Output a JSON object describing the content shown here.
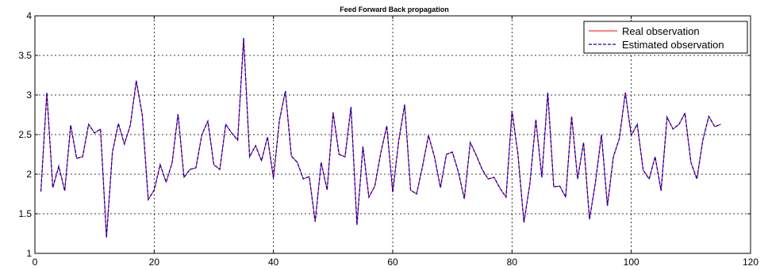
{
  "chart_data": {
    "type": "line",
    "title": "Feed Forward Back propagation",
    "xlabel": "",
    "ylabel": "",
    "xlim": [
      0,
      120
    ],
    "ylim": [
      1,
      4
    ],
    "xticks": [
      0,
      20,
      40,
      60,
      80,
      100,
      120
    ],
    "yticks": [
      1,
      1.5,
      2,
      2.5,
      3,
      3.5,
      4
    ],
    "xtick_labels": [
      "0",
      "20",
      "40",
      "60",
      "80",
      "100",
      "120"
    ],
    "ytick_labels": [
      "1",
      "1.5",
      "2",
      "2.5",
      "3",
      "3.5",
      "4"
    ],
    "grid": true,
    "legend_position": "top-right",
    "series": [
      {
        "name": "Real observation",
        "color": "#ff0000",
        "style": "solid",
        "x": [
          1,
          2,
          3,
          4,
          5,
          6,
          7,
          8,
          9,
          10,
          11,
          12,
          13,
          14,
          15,
          16,
          17,
          18,
          19,
          20,
          21,
          22,
          23,
          24,
          25,
          26,
          27,
          28,
          29,
          30,
          31,
          32,
          33,
          34,
          35,
          36,
          37,
          38,
          39,
          40,
          41,
          42,
          43,
          44,
          45,
          46,
          47,
          48,
          49,
          50,
          51,
          52,
          53,
          54,
          55,
          56,
          57,
          58,
          59,
          60,
          61,
          62,
          63,
          64,
          65,
          66,
          67,
          68,
          69,
          70,
          71,
          72,
          73,
          74,
          75,
          76,
          77,
          78,
          79,
          80,
          81,
          82,
          83,
          84,
          85,
          86,
          87,
          88,
          89,
          90,
          91,
          92,
          93,
          94,
          95,
          96,
          97,
          98,
          99,
          100,
          101,
          102,
          103,
          104,
          105,
          106,
          107,
          108,
          109,
          110,
          111,
          112,
          113,
          114,
          115
        ],
        "values": [
          1.78,
          3.03,
          1.83,
          2.1,
          1.79,
          2.62,
          2.2,
          2.22,
          2.63,
          2.52,
          2.57,
          1.2,
          2.28,
          2.64,
          2.38,
          2.62,
          3.18,
          2.75,
          1.68,
          1.8,
          2.12,
          1.9,
          2.14,
          2.76,
          1.96,
          2.06,
          2.08,
          2.5,
          2.67,
          2.12,
          2.06,
          2.63,
          2.52,
          2.43,
          3.72,
          2.22,
          2.36,
          2.17,
          2.47,
          1.95,
          2.68,
          3.05,
          2.23,
          2.15,
          1.94,
          1.97,
          1.4,
          2.15,
          1.8,
          2.78,
          2.25,
          2.22,
          2.85,
          1.36,
          2.35,
          1.71,
          1.85,
          2.27,
          2.61,
          1.77,
          2.42,
          2.88,
          1.8,
          1.75,
          2.1,
          2.49,
          2.22,
          1.83,
          2.25,
          2.28,
          2.03,
          1.69,
          2.4,
          2.24,
          2.06,
          1.94,
          1.96,
          1.82,
          1.71,
          2.8,
          2.25,
          1.39,
          1.88,
          2.69,
          1.96,
          3.03,
          1.84,
          1.85,
          1.71,
          2.73,
          1.94,
          2.4,
          1.43,
          1.9,
          2.5,
          1.6,
          2.22,
          2.45,
          3.03,
          2.49,
          2.63,
          2.05,
          1.94,
          2.22,
          1.79,
          2.72,
          2.57,
          2.63,
          2.77,
          2.15,
          1.94,
          2.43,
          2.73,
          2.6,
          2.63
        ]
      },
      {
        "name": "Estimated observation",
        "color": "#0000cc",
        "style": "dashed",
        "x": [
          1,
          2,
          3,
          4,
          5,
          6,
          7,
          8,
          9,
          10,
          11,
          12,
          13,
          14,
          15,
          16,
          17,
          18,
          19,
          20,
          21,
          22,
          23,
          24,
          25,
          26,
          27,
          28,
          29,
          30,
          31,
          32,
          33,
          34,
          35,
          36,
          37,
          38,
          39,
          40,
          41,
          42,
          43,
          44,
          45,
          46,
          47,
          48,
          49,
          50,
          51,
          52,
          53,
          54,
          55,
          56,
          57,
          58,
          59,
          60,
          61,
          62,
          63,
          64,
          65,
          66,
          67,
          68,
          69,
          70,
          71,
          72,
          73,
          74,
          75,
          76,
          77,
          78,
          79,
          80,
          81,
          82,
          83,
          84,
          85,
          86,
          87,
          88,
          89,
          90,
          91,
          92,
          93,
          94,
          95,
          96,
          97,
          98,
          99,
          100,
          101,
          102,
          103,
          104,
          105,
          106,
          107,
          108,
          109,
          110,
          111,
          112,
          113,
          114,
          115
        ],
        "values": [
          1.78,
          3.03,
          1.83,
          2.1,
          1.79,
          2.62,
          2.2,
          2.22,
          2.63,
          2.52,
          2.57,
          1.2,
          2.28,
          2.64,
          2.38,
          2.62,
          3.18,
          2.75,
          1.68,
          1.8,
          2.12,
          1.9,
          2.14,
          2.76,
          1.96,
          2.06,
          2.08,
          2.5,
          2.67,
          2.12,
          2.06,
          2.63,
          2.52,
          2.43,
          3.72,
          2.22,
          2.36,
          2.17,
          2.47,
          1.95,
          2.68,
          3.05,
          2.23,
          2.15,
          1.94,
          1.97,
          1.4,
          2.15,
          1.8,
          2.78,
          2.25,
          2.22,
          2.85,
          1.36,
          2.35,
          1.71,
          1.85,
          2.27,
          2.61,
          1.77,
          2.42,
          2.88,
          1.8,
          1.75,
          2.1,
          2.49,
          2.22,
          1.83,
          2.25,
          2.28,
          2.03,
          1.69,
          2.4,
          2.24,
          2.06,
          1.94,
          1.96,
          1.82,
          1.71,
          2.8,
          2.25,
          1.39,
          1.88,
          2.69,
          1.96,
          3.03,
          1.84,
          1.85,
          1.71,
          2.73,
          1.94,
          2.4,
          1.43,
          1.9,
          2.5,
          1.6,
          2.22,
          2.45,
          3.03,
          2.49,
          2.63,
          2.05,
          1.94,
          2.22,
          1.79,
          2.72,
          2.57,
          2.63,
          2.77,
          2.15,
          1.94,
          2.43,
          2.73,
          2.6,
          2.63
        ]
      }
    ]
  }
}
